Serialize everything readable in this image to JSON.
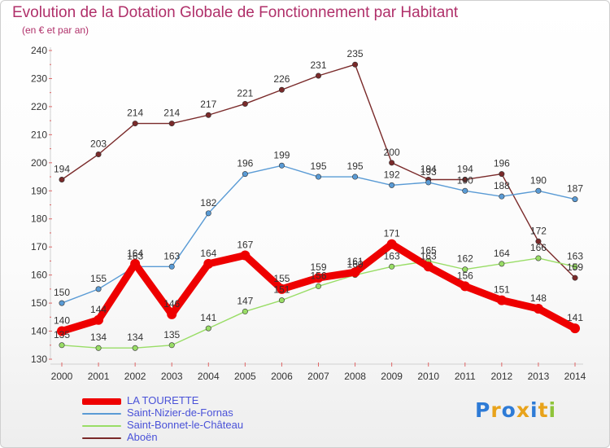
{
  "title": "Evolution de la Dotation Globale de Fonctionnement par Habitant",
  "subtitle": "(en € et par an)",
  "logo": "Proxiti",
  "chart_data": {
    "type": "line",
    "title": "Evolution de la Dotation Globale de Fonctionnement par Habitant",
    "subtitle": "(en € et par an)",
    "x": [
      "2000",
      "2001",
      "2002",
      "2003",
      "2004",
      "2005",
      "2006",
      "2007",
      "2008",
      "2009",
      "2010",
      "2011",
      "2012",
      "2013",
      "2014"
    ],
    "ylim": [
      130,
      240
    ],
    "yticks": [
      130,
      140,
      150,
      160,
      170,
      180,
      190,
      200,
      210,
      220,
      230,
      240
    ],
    "grid": false,
    "legend_position": "bottom-left",
    "series": [
      {
        "name": "LA TOURETTE",
        "color": "#ee0000",
        "values": [
          140,
          144,
          164,
          146,
          164,
          167,
          155,
          159,
          161,
          171,
          163,
          156,
          151,
          148,
          141
        ]
      },
      {
        "name": "Saint-Nizier-de-Fornas",
        "color": "#5a9bd5",
        "values": [
          150,
          155,
          163,
          163,
          182,
          196,
          199,
          195,
          195,
          192,
          193,
          190,
          188,
          190,
          187
        ]
      },
      {
        "name": "Saint-Bonnet-le-Château",
        "color": "#99dd66",
        "values": [
          135,
          134,
          134,
          135,
          141,
          147,
          151,
          156,
          160,
          163,
          165,
          162,
          164,
          166,
          163
        ]
      },
      {
        "name": "Aboën",
        "color": "#7a2a2a",
        "values": [
          194,
          203,
          214,
          214,
          217,
          221,
          226,
          231,
          235,
          200,
          194,
          194,
          196,
          172,
          159
        ]
      }
    ]
  }
}
